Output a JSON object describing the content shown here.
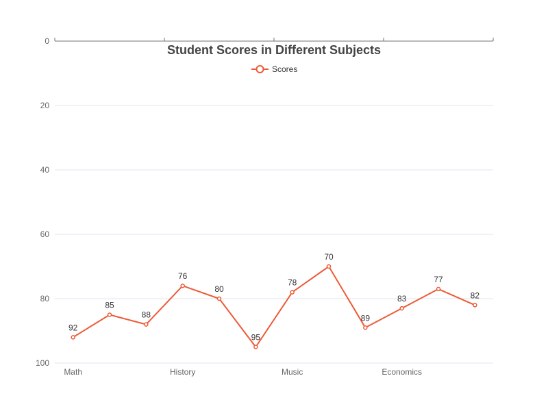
{
  "chart_data": {
    "type": "line",
    "title": "Student Scores in Different Subjects",
    "categories": [
      "Math",
      "",
      "",
      "History",
      "",
      "",
      "Music",
      "",
      "",
      "Economics",
      "",
      ""
    ],
    "series": [
      {
        "name": "Scores",
        "values": [
          92,
          85,
          88,
          76,
          80,
          95,
          78,
          70,
          89,
          83,
          77,
          82
        ]
      }
    ],
    "yticks": [
      0,
      20,
      40,
      60,
      80,
      100
    ],
    "ylim": [
      0,
      100
    ],
    "y_inverted": true,
    "grid": true,
    "legend_position": "top-center",
    "series_color": "#ee5a36"
  }
}
